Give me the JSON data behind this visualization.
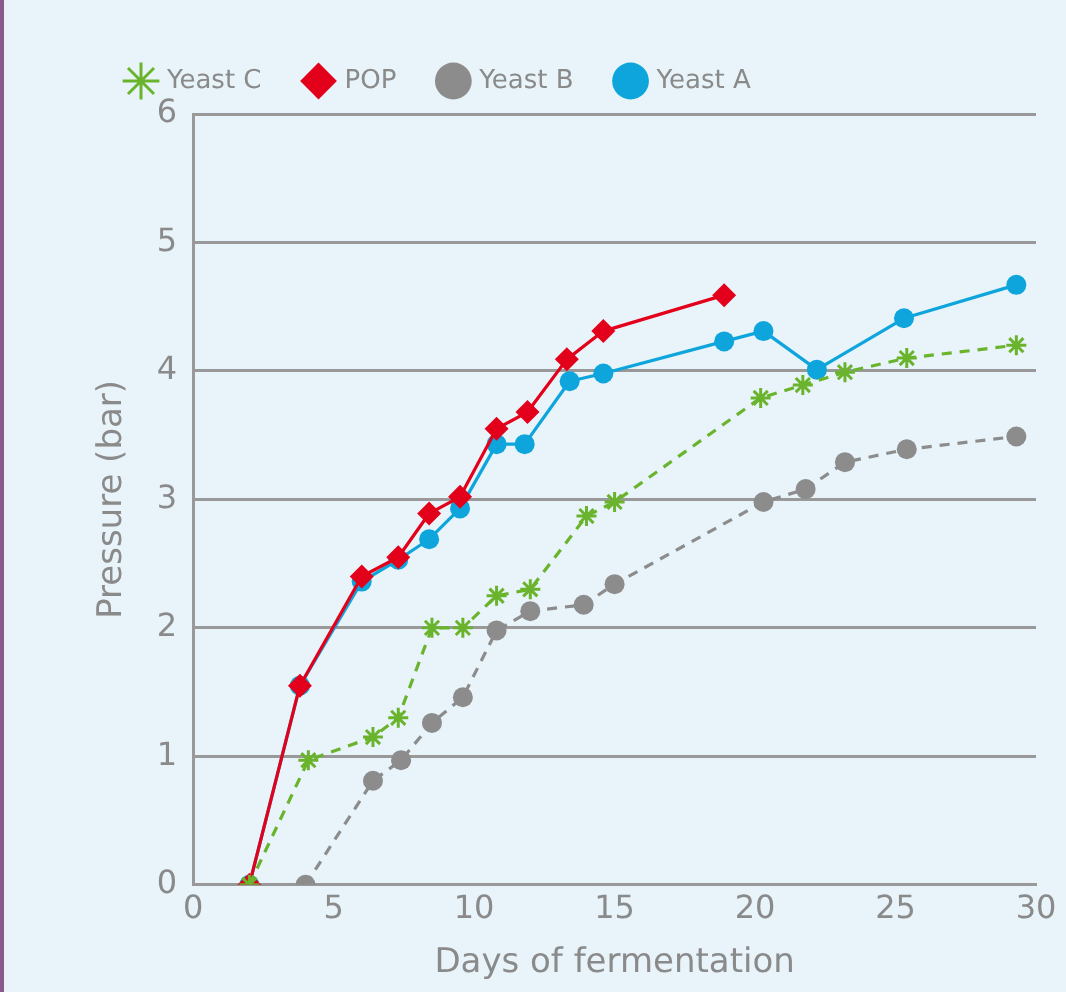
{
  "chart_data": {
    "type": "line",
    "xlabel": "Days of fermentation",
    "ylabel": "Pressure (bar)",
    "xlim": [
      0,
      30
    ],
    "xticks": [
      0,
      5,
      10,
      15,
      20,
      25,
      30
    ],
    "ylim": [
      0,
      6
    ],
    "yticks": [
      0,
      1,
      2,
      3,
      4,
      5,
      6
    ],
    "grid": "y",
    "legend": "top left",
    "series": [
      {
        "name": "Yeast A",
        "color": "#0ea5dc",
        "marker": "circle",
        "line_style": "solid",
        "x": [
          2.0,
          3.8,
          6.0,
          7.3,
          8.4,
          9.5,
          10.8,
          11.8,
          13.4,
          14.6,
          18.9,
          20.3,
          22.2,
          25.3,
          29.3
        ],
        "values": [
          0,
          1.55,
          2.36,
          2.53,
          2.69,
          2.93,
          3.43,
          3.43,
          3.92,
          3.98,
          4.23,
          4.31,
          4.01,
          4.41,
          4.67
        ]
      },
      {
        "name": "Yeast B",
        "color": "#8c8c8c",
        "marker": "circle",
        "line_style": "dashed",
        "x": [
          4.0,
          6.4,
          7.4,
          8.5,
          9.6,
          10.8,
          12.0,
          13.9,
          15.0,
          20.3,
          21.8,
          23.2,
          25.4,
          29.3
        ],
        "values": [
          0,
          0.81,
          0.97,
          1.26,
          1.46,
          1.98,
          2.13,
          2.18,
          2.34,
          2.98,
          3.08,
          3.29,
          3.39,
          3.49
        ]
      },
      {
        "name": "POP",
        "color": "#e3001b",
        "marker": "diamond",
        "line_style": "solid",
        "x": [
          2.0,
          3.8,
          6.0,
          7.3,
          8.4,
          9.5,
          10.8,
          11.9,
          13.3,
          14.6,
          18.9
        ],
        "values": [
          0,
          1.55,
          2.4,
          2.55,
          2.89,
          3.02,
          3.55,
          3.68,
          4.09,
          4.31,
          4.59
        ]
      },
      {
        "name": "Yeast C",
        "color": "#6ab42d",
        "marker": "cross",
        "line_style": "dashed",
        "x": [
          2.0,
          4.1,
          6.4,
          7.3,
          8.5,
          9.6,
          10.8,
          12.0,
          14.0,
          15.0,
          20.2,
          21.7,
          23.2,
          25.4,
          29.3
        ],
        "values": [
          0,
          0.97,
          1.15,
          1.3,
          2.0,
          2.0,
          2.25,
          2.3,
          2.87,
          2.98,
          3.79,
          3.89,
          3.99,
          4.1,
          4.2
        ]
      }
    ]
  }
}
